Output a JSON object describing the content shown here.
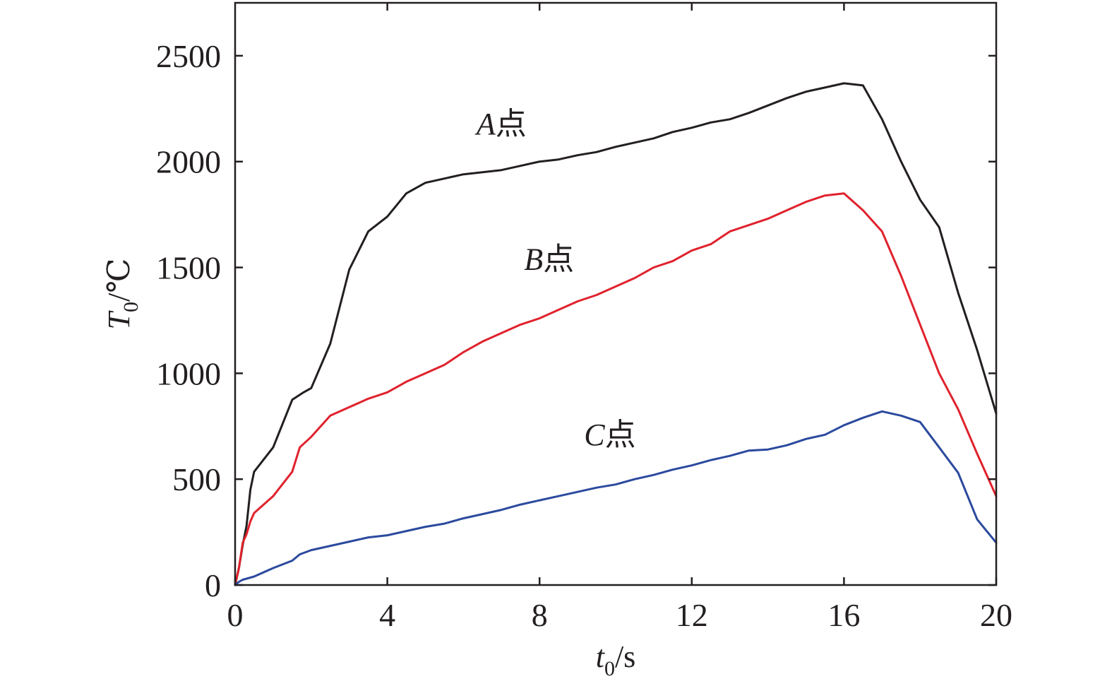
{
  "chart_data": {
    "type": "line",
    "xlabel": {
      "var": "t",
      "sub": "0",
      "unit": "/s"
    },
    "ylabel": {
      "var": "T",
      "sub": "0",
      "unit": "/℃"
    },
    "xlim": [
      0,
      20
    ],
    "ylim": [
      0,
      2750
    ],
    "xticks": [
      0,
      4,
      8,
      12,
      16,
      20
    ],
    "yticks": [
      0,
      500,
      1000,
      1500,
      2000,
      2500
    ],
    "grid": false,
    "series": [
      {
        "id": "A",
        "label_var": "A",
        "label_text": "点",
        "color": "#231f20",
        "x": [
          0,
          0.1,
          0.2,
          0.3,
          0.4,
          0.5,
          1.0,
          1.5,
          1.8,
          2.0,
          2.5,
          3.0,
          3.5,
          4.0,
          4.5,
          5.0,
          5.5,
          6.0,
          6.5,
          7.0,
          7.5,
          8.0,
          8.5,
          9.0,
          9.5,
          10.0,
          10.5,
          11.0,
          11.5,
          12.0,
          12.5,
          13.0,
          13.5,
          14.0,
          14.5,
          15.0,
          15.5,
          16.0,
          16.5,
          17.0,
          17.5,
          18.0,
          18.5,
          19.0,
          19.5,
          20.0
        ],
        "y": [
          0,
          80,
          190,
          280,
          450,
          535,
          650,
          875,
          910,
          930,
          1140,
          1490,
          1670,
          1740,
          1850,
          1900,
          1920,
          1940,
          1950,
          1960,
          1980,
          2000,
          2010,
          2030,
          2045,
          2070,
          2090,
          2110,
          2140,
          2160,
          2185,
          2200,
          2230,
          2265,
          2300,
          2330,
          2350,
          2370,
          2360,
          2200,
          2000,
          1820,
          1690,
          1380,
          1110,
          810
        ]
      },
      {
        "id": "B",
        "label_var": "B",
        "label_text": "点",
        "color": "#e0222d",
        "x": [
          0,
          0.1,
          0.2,
          0.3,
          0.4,
          0.5,
          1.0,
          1.5,
          1.7,
          2.0,
          2.5,
          3.0,
          3.5,
          4.0,
          4.5,
          5.0,
          5.5,
          6.0,
          6.5,
          7.0,
          7.5,
          8.0,
          8.5,
          9.0,
          9.5,
          10.0,
          10.5,
          11.0,
          11.5,
          12.0,
          12.5,
          13.0,
          13.5,
          14.0,
          14.5,
          15.0,
          15.5,
          16.0,
          16.5,
          17.0,
          17.5,
          18.0,
          18.5,
          19.0,
          19.5,
          20.0
        ],
        "y": [
          0,
          80,
          200,
          240,
          300,
          340,
          420,
          535,
          650,
          700,
          800,
          840,
          880,
          910,
          960,
          1000,
          1040,
          1100,
          1150,
          1190,
          1230,
          1260,
          1300,
          1340,
          1370,
          1410,
          1450,
          1500,
          1530,
          1580,
          1610,
          1670,
          1700,
          1730,
          1770,
          1810,
          1840,
          1850,
          1770,
          1670,
          1460,
          1230,
          1000,
          830,
          620,
          420
        ]
      },
      {
        "id": "C",
        "label_var": "C",
        "label_text": "点",
        "color": "#2b4a9e",
        "x": [
          0,
          0.1,
          0.2,
          0.3,
          0.4,
          0.5,
          1.0,
          1.5,
          1.7,
          2.0,
          2.5,
          3.0,
          3.5,
          4.0,
          4.5,
          5.0,
          5.5,
          6.0,
          6.5,
          7.0,
          7.5,
          8.0,
          8.5,
          9.0,
          9.5,
          10.0,
          10.5,
          11.0,
          11.5,
          12.0,
          12.5,
          13.0,
          13.5,
          14.0,
          14.5,
          15.0,
          15.5,
          16.0,
          16.5,
          17.0,
          17.5,
          18.0,
          18.5,
          19.0,
          19.5,
          20.0
        ],
        "y": [
          0,
          15,
          25,
          30,
          35,
          40,
          80,
          115,
          145,
          165,
          185,
          205,
          225,
          235,
          255,
          275,
          290,
          315,
          335,
          355,
          380,
          400,
          420,
          440,
          460,
          475,
          500,
          520,
          545,
          565,
          590,
          610,
          635,
          640,
          660,
          690,
          710,
          755,
          790,
          820,
          800,
          770,
          650,
          530,
          310,
          200
        ]
      }
    ],
    "annotations": [
      {
        "series": "A",
        "x": 7.0,
        "y": 2130
      },
      {
        "series": "B",
        "x": 8.25,
        "y": 1490
      },
      {
        "series": "C",
        "x": 9.85,
        "y": 660
      }
    ]
  }
}
